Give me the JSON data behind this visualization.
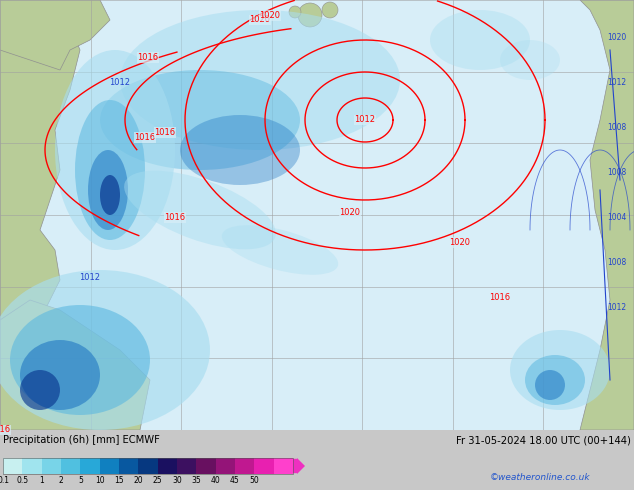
{
  "title_left": "Precipitation (6h) [mm] ECMWF",
  "title_right": "Fr 31-05-2024 18.00 UTC (00+144)",
  "credit": "©weatheronline.co.uk",
  "colorbar_labels": [
    "0.1",
    "0.5",
    "1",
    "2",
    "5",
    "10",
    "15",
    "20",
    "25",
    "30",
    "35",
    "40",
    "45",
    "50"
  ],
  "colorbar_colors": [
    "#c8f0f0",
    "#a0e4ee",
    "#78d4e8",
    "#50c0e0",
    "#28a8d8",
    "#1080c0",
    "#0858a0",
    "#063880",
    "#1a1060",
    "#3c1060",
    "#681060",
    "#941478",
    "#c01890",
    "#e820b0",
    "#ff40cc"
  ],
  "colorbar_arrow_color": "#ee30c0",
  "bottom_bg": "#c8c8c8",
  "map_bg": "#e8e4e0",
  "ocean_color": "#d8eef8",
  "land_color_green": "#b8cc98",
  "land_color_light": "#c8d8b0",
  "grid_color": "#a0a0a0",
  "precip_light": "#a8ddf0",
  "precip_mid": "#5cb8e0",
  "precip_dark_blue": "#1870c0",
  "precip_deep": "#0a3890"
}
